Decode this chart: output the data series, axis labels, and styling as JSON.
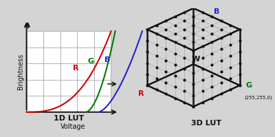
{
  "bg_color": "#d4d4d4",
  "title_1d": "1D LUT",
  "title_3d": "3D LUT",
  "xlabel_1d": "Voltage",
  "ylabel_1d": "Brightness",
  "curve_R_color": "#cc0000",
  "curve_G_color": "#007700",
  "curve_B_color": "#2222cc",
  "grid_color": "#b0b0b0",
  "axis_color": "#111111",
  "dot_color": "#111111",
  "edge_color": "#111111",
  "label_R_color": "#cc0000",
  "label_G_color": "#007700",
  "label_B_color": "#2222cc",
  "label_W_color": "#111111",
  "cube_n": 5
}
